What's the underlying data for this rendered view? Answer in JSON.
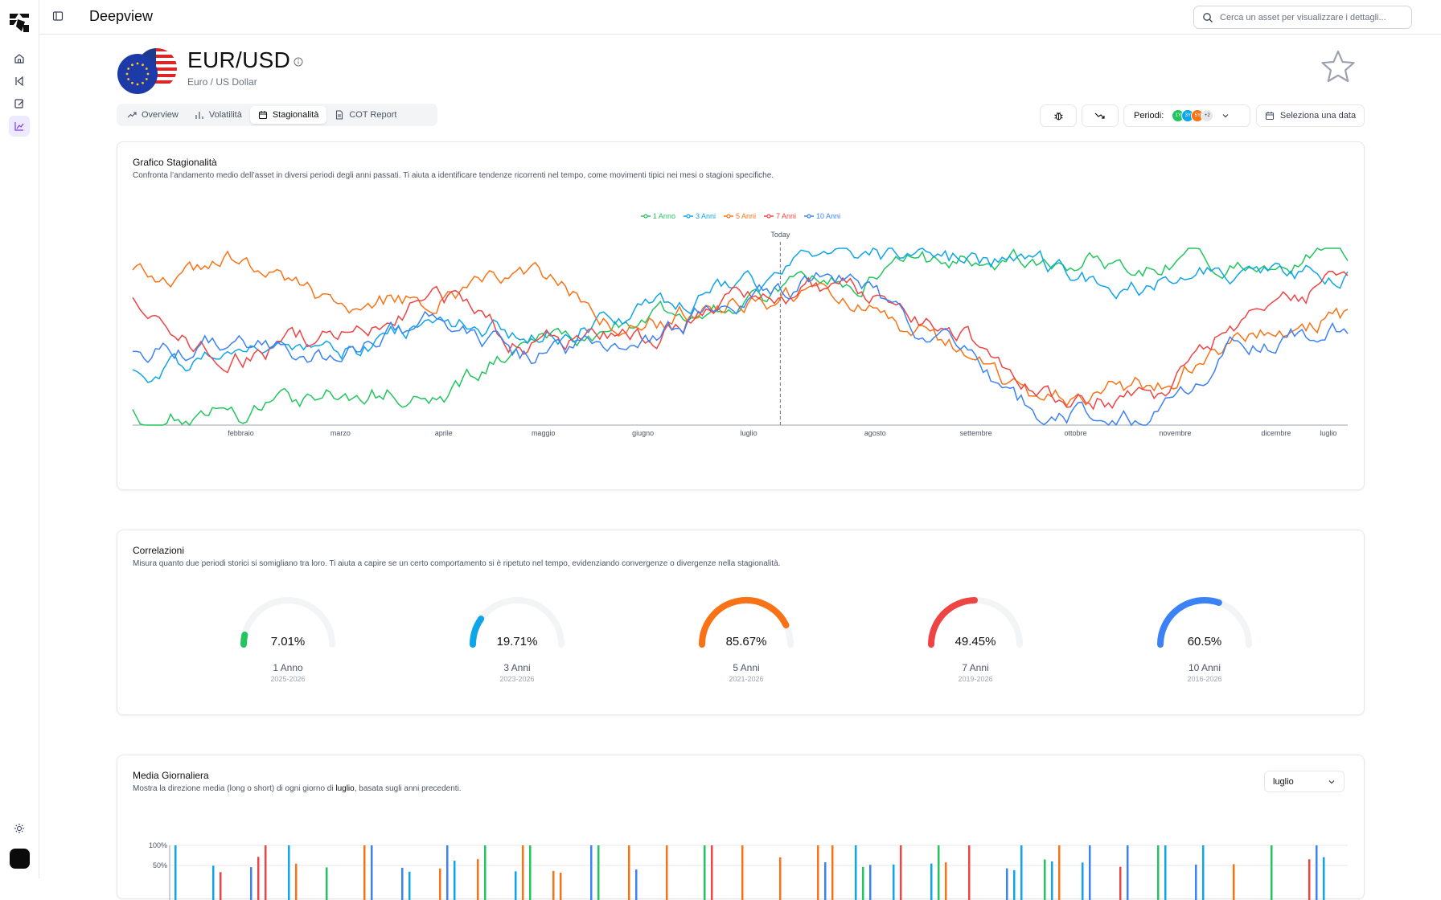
{
  "app": {
    "title": "Deepview"
  },
  "search": {
    "placeholder": "Cerca un asset per visualizzare i dettagli..."
  },
  "asset": {
    "symbol": "EUR/USD",
    "name": "Euro / US Dollar"
  },
  "tabs": [
    {
      "label": "Overview",
      "icon": "trending-up-icon"
    },
    {
      "label": "Volatilità",
      "icon": "bar-chart-icon"
    },
    {
      "label": "Stagionalità",
      "icon": "calendar-icon",
      "active": true
    },
    {
      "label": "COT Report",
      "icon": "document-icon"
    }
  ],
  "controls": {
    "periods_label": "Periodi:",
    "period_badges": [
      {
        "label": "1Y",
        "color": "#22c55e"
      },
      {
        "label": "3Y",
        "color": "#0ea5e9"
      },
      {
        "label": "5Y",
        "color": "#f97316"
      },
      {
        "label": "+2",
        "color": "#e5e7eb"
      }
    ],
    "date_button": "Seleziona una data"
  },
  "seasonality": {
    "title": "Grafico Stagionalità",
    "description": "Confronta l’andamento medio dell’asset in diversi periodi degli anni passati. Ti aiuta a identificare tendenze ricorrenti nel tempo, come movimenti tipici nei mesi o stagioni specifiche.",
    "today_label": "Today"
  },
  "correlations": {
    "title": "Correlazioni",
    "description": "Misura quanto due periodi storici si somigliano tra loro. Ti aiuta a capire se un certo comportamento si è ripetuto nel tempo, evidenziando convergenze o divergenze nella stagionalità.",
    "items": [
      {
        "value": "7.01%",
        "pct": 7.01,
        "label": "1 Anno",
        "range": "2025-2026",
        "color": "#22c55e"
      },
      {
        "value": "19.71%",
        "pct": 19.71,
        "label": "3 Anni",
        "range": "2023-2026",
        "color": "#0ea5e9"
      },
      {
        "value": "85.67%",
        "pct": 85.67,
        "label": "5 Anni",
        "range": "2021-2026",
        "color": "#f97316"
      },
      {
        "value": "49.45%",
        "pct": 49.45,
        "label": "7 Anni",
        "range": "2019-2026",
        "color": "#ef4444"
      },
      {
        "value": "60.5%",
        "pct": 60.5,
        "label": "10 Anni",
        "range": "2016-2026",
        "color": "#3b82f6"
      }
    ]
  },
  "daily": {
    "title": "Media Giornaliera",
    "description_pre": "Mostra la direzione media (long o short) di ogni giorno di ",
    "description_month": "luglio",
    "description_post": ", basata sugli anni precedenti.",
    "month_select": "luglio"
  },
  "chart_data": [
    {
      "type": "line",
      "x_labels": [
        "febbraio",
        "marzo",
        "aprile",
        "maggio",
        "giugno",
        "luglio",
        "agosto",
        "settembre",
        "ottobre",
        "novembre",
        "dicembre",
        "luglio"
      ],
      "series": [
        {
          "name": "1 Anno",
          "color": "#22c55e",
          "anchors": [
            0.95,
            0.93,
            0.84,
            0.8,
            0.55,
            0.42,
            0.3,
            0.2,
            0.08,
            0.07,
            0.08,
            0.09,
            0.06
          ]
        },
        {
          "name": "3 Anni",
          "color": "#0ea5e9",
          "anchors": [
            0.72,
            0.62,
            0.58,
            0.44,
            0.48,
            0.36,
            0.22,
            0.03,
            0.05,
            0.12,
            0.2,
            0.15,
            0.18
          ]
        },
        {
          "name": "5 Anni",
          "color": "#f97316",
          "anchors": [
            0.15,
            0.08,
            0.3,
            0.28,
            0.18,
            0.42,
            0.3,
            0.26,
            0.52,
            0.85,
            0.78,
            0.5,
            0.38
          ]
        },
        {
          "name": "7 Anni",
          "color": "#ef4444",
          "anchors": [
            0.3,
            0.62,
            0.5,
            0.28,
            0.55,
            0.5,
            0.3,
            0.22,
            0.46,
            0.82,
            0.85,
            0.42,
            0.2
          ]
        },
        {
          "name": "10 Anni",
          "color": "#3b82f6",
          "anchors": [
            0.6,
            0.52,
            0.6,
            0.4,
            0.6,
            0.5,
            0.32,
            0.15,
            0.5,
            0.92,
            0.96,
            0.55,
            0.45
          ]
        }
      ],
      "today_position": 0.533
    },
    {
      "type": "bar",
      "y_ticks": [
        "100%",
        "50%"
      ],
      "colors": {
        "long": "#22c55e",
        "short": "#ef4444",
        "neutral": "#3b82f6",
        "alt": "#f97316",
        "alt2": "#0ea5e9"
      }
    }
  ]
}
